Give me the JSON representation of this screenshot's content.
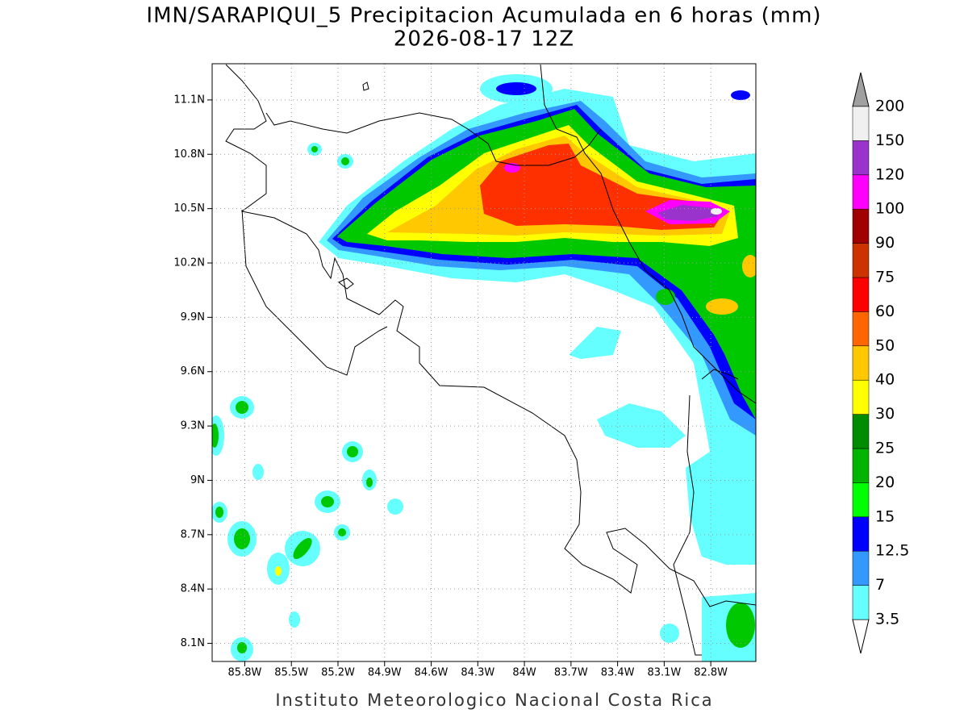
{
  "title": "IMN/SARAPIQUI_5 Precipitacion Acumulada en 6 horas (mm)",
  "subtitle": "2026-08-17 12Z",
  "map": {
    "xlim": [
      -86.01,
      -82.51
    ],
    "ylim": [
      8.0,
      11.3
    ],
    "xticks": [
      {
        "value": -85.8,
        "label": "85.8W"
      },
      {
        "value": -85.5,
        "label": "85.5W"
      },
      {
        "value": -85.2,
        "label": "85.2W"
      },
      {
        "value": -84.9,
        "label": "84.9W"
      },
      {
        "value": -84.6,
        "label": "84.6W"
      },
      {
        "value": -84.3,
        "label": "84.3W"
      },
      {
        "value": -84.0,
        "label": "84W"
      },
      {
        "value": -83.7,
        "label": "83.7W"
      },
      {
        "value": -83.4,
        "label": "83.4W"
      },
      {
        "value": -83.1,
        "label": "83.1W"
      },
      {
        "value": -82.8,
        "label": "82.8W"
      }
    ],
    "yticks": [
      {
        "value": 8.1,
        "label": "8.1N"
      },
      {
        "value": 8.4,
        "label": "8.4N"
      },
      {
        "value": 8.7,
        "label": "8.7N"
      },
      {
        "value": 9.0,
        "label": "9N"
      },
      {
        "value": 9.3,
        "label": "9.3N"
      },
      {
        "value": 9.6,
        "label": "9.6N"
      },
      {
        "value": 9.9,
        "label": "9.9N"
      },
      {
        "value": 10.2,
        "label": "10.2N"
      },
      {
        "value": 10.5,
        "label": "10.5N"
      },
      {
        "value": 10.8,
        "label": "10.8N"
      },
      {
        "value": 11.1,
        "label": "11.1N"
      }
    ],
    "grid": true
  },
  "colorbar": {
    "levels": [
      3.5,
      7,
      12.5,
      15,
      20,
      25,
      30,
      40,
      50,
      60,
      75,
      90,
      100,
      120,
      150,
      200
    ],
    "colors": [
      "#66ffff",
      "#3399ff",
      "#0000ff",
      "#00ff00",
      "#00b400",
      "#008c00",
      "#ffff00",
      "#ffc800",
      "#ff6600",
      "#ff0000",
      "#cc3300",
      "#a00000",
      "#ff00ff",
      "#9933cc",
      "#f0f0f0"
    ],
    "over_color": "#a0a0a0",
    "under_color": "#ffffff"
  },
  "footer": "Instituto Meteorologico Nacional Costa Rica"
}
